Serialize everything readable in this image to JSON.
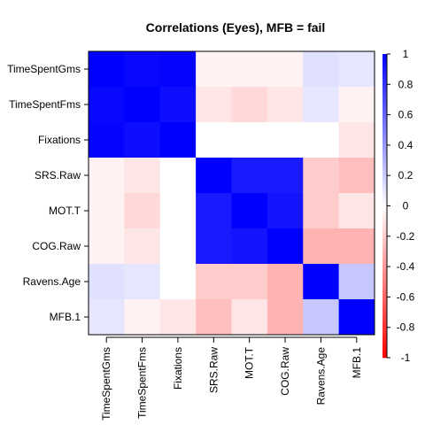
{
  "chart_data": {
    "type": "heatmap",
    "title": "Correlations (Eyes), MFB = fail",
    "variables": [
      "TimeSpentGms",
      "TimeSpentFms",
      "Fixations",
      "SRS.Raw",
      "MOT.T",
      "COG.Raw",
      "Ravens.Age",
      "MFB.1"
    ],
    "matrix": [
      [
        1.0,
        0.97,
        0.98,
        -0.05,
        -0.05,
        -0.05,
        0.12,
        0.1
      ],
      [
        0.97,
        1.0,
        0.95,
        -0.1,
        -0.15,
        -0.1,
        0.1,
        -0.05
      ],
      [
        0.98,
        0.95,
        1.0,
        null,
        null,
        null,
        null,
        -0.1
      ],
      [
        -0.05,
        -0.1,
        null,
        1.0,
        0.9,
        0.9,
        -0.2,
        -0.25
      ],
      [
        -0.05,
        -0.15,
        null,
        0.9,
        1.0,
        0.92,
        -0.2,
        -0.1
      ],
      [
        -0.05,
        -0.1,
        null,
        0.9,
        0.92,
        1.0,
        -0.3,
        -0.3
      ],
      [
        0.12,
        0.1,
        null,
        -0.2,
        -0.2,
        -0.3,
        1.0,
        0.22
      ],
      [
        0.1,
        -0.05,
        -0.1,
        -0.25,
        -0.1,
        -0.3,
        0.22,
        1.0
      ]
    ],
    "zlim": [
      -1,
      1
    ],
    "colorbar_ticks": [
      "1",
      "0.8",
      "0.6",
      "0.4",
      "0.2",
      "0",
      "-0.2",
      "-0.4",
      "-0.6",
      "-0.8",
      "-1"
    ],
    "color_low": "#ff0000",
    "color_mid": "#ffffff",
    "color_high": "#0000ff",
    "legend_position": "right"
  }
}
